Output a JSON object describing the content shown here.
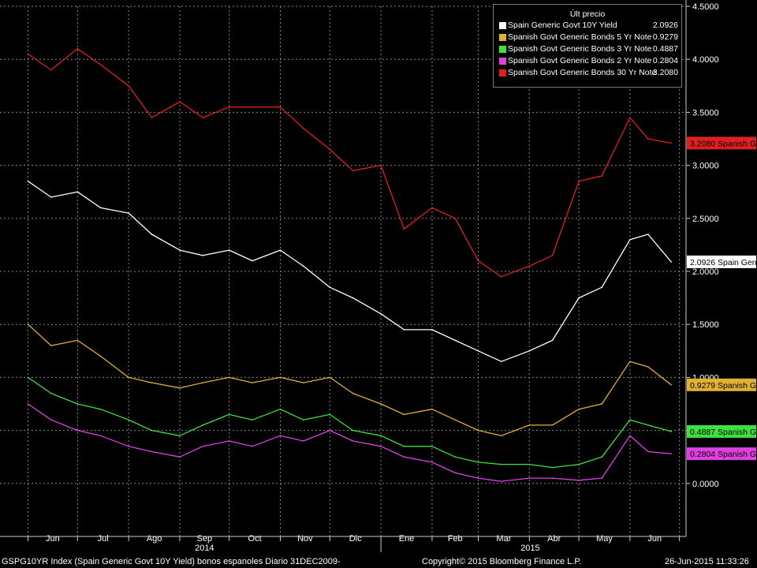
{
  "chart_data": {
    "type": "line",
    "ylim": [
      -0.5,
      4.5
    ],
    "y_ticks": [
      "4.5000",
      "4.0000",
      "3.5000",
      "3.0000",
      "2.5000",
      "2.0000",
      "1.5000",
      "1.0000",
      "0.5000",
      "0.0000"
    ],
    "grid": true,
    "legend_placement": "top-right",
    "legend_title": "Últ precio",
    "x_months": [
      "Jun",
      "Jul",
      "Ago",
      "Sep",
      "Oct",
      "Nov",
      "Dic",
      "Ene",
      "Feb",
      "Mar",
      "Abr",
      "May",
      "Jun"
    ],
    "x_years": [
      "2014",
      "2015"
    ],
    "x": [
      "2014-06-01",
      "2014-06-15",
      "2014-07-01",
      "2014-07-15",
      "2014-08-01",
      "2014-08-15",
      "2014-09-01",
      "2014-09-15",
      "2014-10-01",
      "2014-10-15",
      "2014-11-01",
      "2014-11-15",
      "2014-12-01",
      "2014-12-15",
      "2015-01-01",
      "2015-01-15",
      "2015-02-01",
      "2015-02-15",
      "2015-03-01",
      "2015-03-15",
      "2015-04-01",
      "2015-04-15",
      "2015-05-01",
      "2015-05-15",
      "2015-06-01",
      "2015-06-12",
      "2015-06-26"
    ],
    "series": [
      {
        "name": "Spain Generic Govt 10Y Yield",
        "color": "#ffffff",
        "last": "2.0926",
        "label": "2.0926 Spain Gen",
        "values": [
          2.85,
          2.7,
          2.75,
          2.6,
          2.55,
          2.35,
          2.2,
          2.15,
          2.2,
          2.1,
          2.2,
          2.05,
          1.85,
          1.75,
          1.6,
          1.45,
          1.45,
          1.35,
          1.25,
          1.15,
          1.25,
          1.35,
          1.75,
          1.85,
          2.3,
          2.35,
          2.09
        ]
      },
      {
        "name": "Spanish Govt Generic Bonds 5 Yr Note",
        "color": "#e0b030",
        "last": "0.9279",
        "label": "0.9279 Spanish G",
        "values": [
          1.5,
          1.3,
          1.35,
          1.2,
          1.0,
          0.95,
          0.9,
          0.95,
          1.0,
          0.95,
          1.0,
          0.95,
          1.0,
          0.85,
          0.75,
          0.65,
          0.7,
          0.6,
          0.5,
          0.45,
          0.55,
          0.55,
          0.7,
          0.75,
          1.15,
          1.1,
          0.93
        ]
      },
      {
        "name": "Spanish Govt Generic Bonds 3 Yr Note",
        "color": "#40e040",
        "last": "0.4887",
        "label": "0.4887 Spanish G",
        "values": [
          1.0,
          0.85,
          0.75,
          0.7,
          0.6,
          0.5,
          0.45,
          0.55,
          0.65,
          0.6,
          0.7,
          0.6,
          0.65,
          0.5,
          0.45,
          0.35,
          0.35,
          0.25,
          0.2,
          0.18,
          0.18,
          0.15,
          0.18,
          0.25,
          0.6,
          0.55,
          0.49
        ]
      },
      {
        "name": "Spanish Govt Generic Bonds 2 Yr Note",
        "color": "#e040e0",
        "last": "0.2804",
        "label": "0.2804 Spanish G",
        "values": [
          0.75,
          0.6,
          0.5,
          0.45,
          0.35,
          0.3,
          0.25,
          0.35,
          0.4,
          0.35,
          0.45,
          0.4,
          0.5,
          0.4,
          0.35,
          0.25,
          0.2,
          0.1,
          0.05,
          0.02,
          0.05,
          0.05,
          0.03,
          0.05,
          0.45,
          0.3,
          0.28
        ]
      },
      {
        "name": "Spanish Govt Generic Bonds 30 Yr Note",
        "color": "#e02020",
        "last": "3.2080",
        "label": "3.2080 Spanish G",
        "values": [
          4.05,
          3.9,
          4.1,
          3.95,
          3.75,
          3.45,
          3.6,
          3.45,
          3.55,
          3.55,
          3.55,
          3.35,
          3.15,
          2.95,
          3.0,
          2.4,
          2.6,
          2.5,
          2.1,
          1.95,
          2.05,
          2.15,
          2.85,
          2.9,
          3.45,
          3.25,
          3.21
        ]
      }
    ]
  },
  "footer": {
    "left": "GSPG10YR Index (Spain Generic Govt 10Y Yield) bonos espanoles  Diario 31DEC2009-",
    "center": "Copyright© 2015 Bloomberg Finance L.P.",
    "right": "26-Jun-2015 11:33:26"
  }
}
